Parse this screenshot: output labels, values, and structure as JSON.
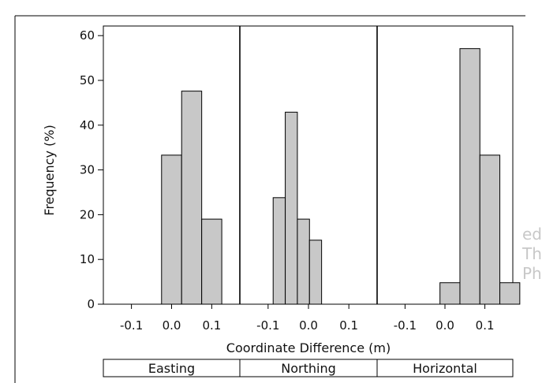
{
  "chart_data": {
    "type": "bar",
    "ylabel": "Frequency (%)",
    "xlabel": "Coordinate Difference (m)",
    "ylim": [
      0,
      62
    ],
    "yticks": [
      "0",
      "10",
      "20",
      "30",
      "40",
      "50",
      "60"
    ],
    "xticks": [
      "-0.1",
      "0.0",
      "0.1"
    ],
    "bar_color": "#c8c8c8",
    "panels": [
      {
        "name": "Easting",
        "bins": [
          {
            "x0": -0.025,
            "x1": 0.025,
            "value": 33.3
          },
          {
            "x0": 0.025,
            "x1": 0.075,
            "value": 47.6
          },
          {
            "x0": 0.075,
            "x1": 0.125,
            "value": 19.0
          }
        ]
      },
      {
        "name": "Northing",
        "bins": [
          {
            "x0": -0.0875,
            "x1": -0.0575,
            "value": 23.8
          },
          {
            "x0": -0.0575,
            "x1": -0.0275,
            "value": 42.9
          },
          {
            "x0": -0.0275,
            "x1": 0.0025,
            "value": 19.0
          },
          {
            "x0": 0.0025,
            "x1": 0.0325,
            "value": 14.3
          }
        ]
      },
      {
        "name": "Horizontal",
        "bins": [
          {
            "x0": -0.0125,
            "x1": 0.0375,
            "value": 4.8
          },
          {
            "x0": 0.0375,
            "x1": 0.0875,
            "value": 57.1
          },
          {
            "x0": 0.0875,
            "x1": 0.1375,
            "value": 33.3
          },
          {
            "x0": 0.1375,
            "x1": 0.1875,
            "value": 4.8
          }
        ]
      }
    ]
  },
  "side_text": [
    "ed",
    "Th",
    "Ph"
  ]
}
